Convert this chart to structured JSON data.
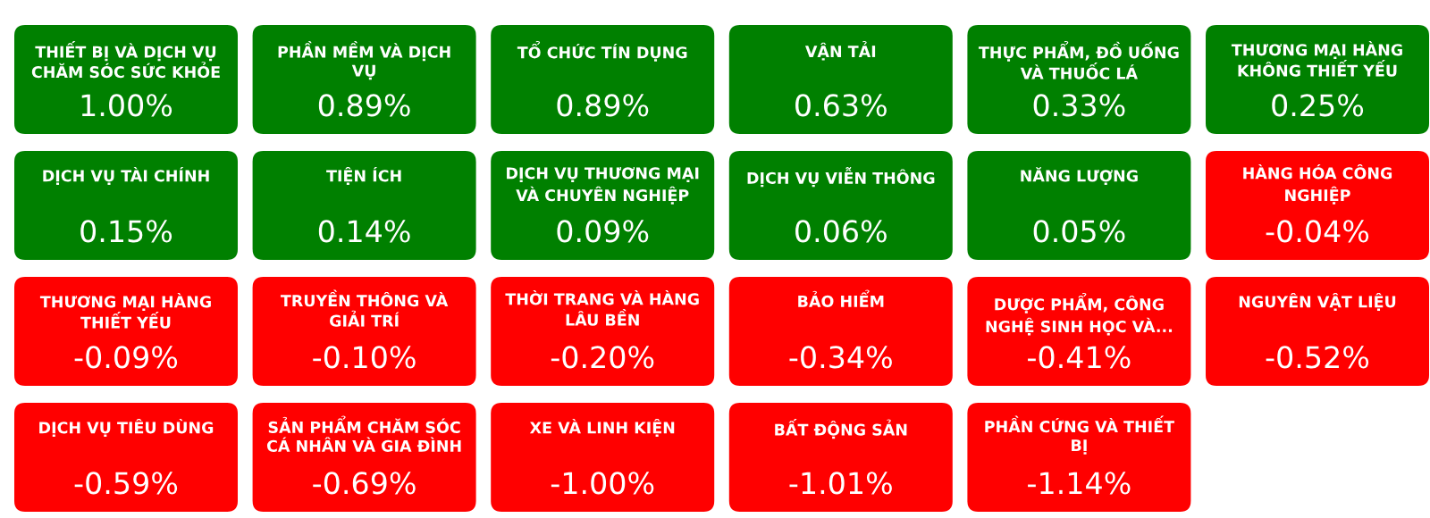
{
  "chart_data": {
    "type": "other",
    "categories": [
      "THIẾT BỊ VÀ DỊCH VỤ CHĂM SÓC SỨC KHỎE",
      "PHẦN MỀM VÀ DỊCH VỤ",
      "TỔ CHỨC TÍN DỤNG",
      "VẬN TẢI",
      "THỰC PHẨM, ĐỒ UỐNG VÀ THUỐC LÁ",
      "THƯƠNG MẠI HÀNG KHÔNG THIẾT YẾU",
      "DỊCH VỤ TÀI CHÍNH",
      "TIỆN ÍCH",
      "DỊCH VỤ THƯƠNG MẠI VÀ CHUYÊN NGHIỆP",
      "DỊCH VỤ VIỄN THÔNG",
      "NĂNG LƯỢNG",
      "HÀNG HÓA CÔNG NGHIỆP",
      "THƯƠNG MẠI HÀNG THIẾT YẾU",
      "TRUYỀN THÔNG VÀ GIẢI TRÍ",
      "THỜI TRANG VÀ HÀNG LÂU BỀN",
      "BẢO HIỂM",
      "DƯỢC PHẨM, CÔNG NGHỆ SINH HỌC VÀ...",
      "NGUYÊN VẬT LIỆU",
      "DỊCH VỤ TIÊU DÙNG",
      "SẢN PHẨM CHĂM SÓC CÁ NHÂN VÀ GIA ĐÌNH",
      "XE VÀ LINH KIỆN",
      "BẤT ĐỘNG SẢN",
      "PHẦN CỨNG VÀ THIẾT BỊ"
    ],
    "values": [
      1.0,
      0.89,
      0.89,
      0.63,
      0.33,
      0.25,
      0.15,
      0.14,
      0.09,
      0.06,
      0.05,
      -0.04,
      -0.09,
      -0.1,
      -0.2,
      -0.34,
      -0.41,
      -0.52,
      -0.59,
      -0.69,
      -1.0,
      -1.01,
      -1.14
    ],
    "value_labels": [
      "1.00%",
      "0.89%",
      "0.89%",
      "0.63%",
      "0.33%",
      "0.25%",
      "0.15%",
      "0.14%",
      "0.09%",
      "0.06%",
      "0.05%",
      "-0.04%",
      "-0.09%",
      "-0.10%",
      "-0.20%",
      "-0.34%",
      "-0.41%",
      "-0.52%",
      "-0.59%",
      "-0.69%",
      "-1.00%",
      "-1.01%",
      "-1.14%"
    ],
    "colors": [
      "#008000",
      "#008000",
      "#008000",
      "#008000",
      "#008000",
      "#008000",
      "#008000",
      "#008000",
      "#008000",
      "#008000",
      "#008000",
      "#ff0000",
      "#ff0000",
      "#ff0000",
      "#ff0000",
      "#ff0000",
      "#ff0000",
      "#ff0000",
      "#ff0000",
      "#ff0000",
      "#ff0000",
      "#ff0000",
      "#ff0000"
    ]
  }
}
